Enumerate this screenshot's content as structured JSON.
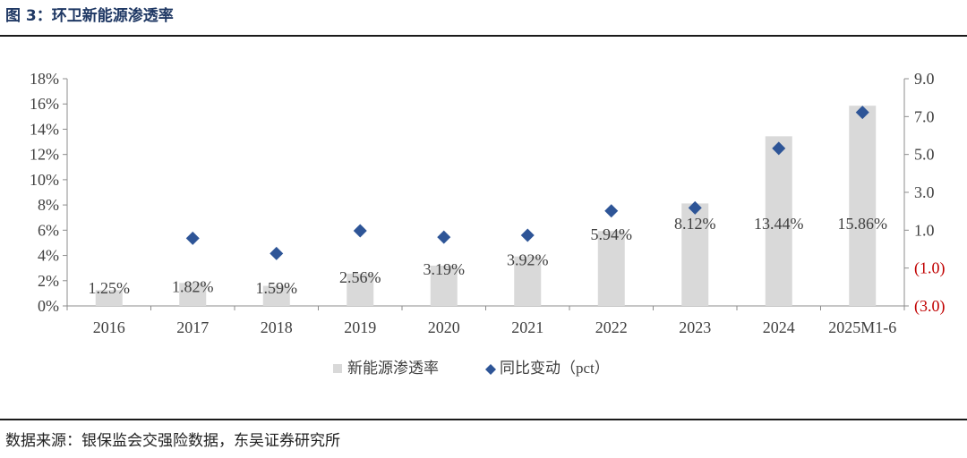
{
  "figure": {
    "title": "图 3：环卫新能源渗透率",
    "source": "数据来源：银保监会交强险数据，东吴证券研究所"
  },
  "chart_data": {
    "type": "bar",
    "categories": [
      "2016",
      "2017",
      "2018",
      "2019",
      "2020",
      "2021",
      "2022",
      "2023",
      "2024",
      "2025M1-6"
    ],
    "series": [
      {
        "name": "新能源渗透率",
        "kind": "bar",
        "axis": "left",
        "color": "#d9d9d9",
        "values": [
          1.25,
          1.82,
          1.59,
          2.56,
          3.19,
          3.92,
          5.94,
          8.12,
          13.44,
          15.86
        ],
        "labels": [
          "1.25%",
          "1.82%",
          "1.59%",
          "2.56%",
          "3.19%",
          "3.92%",
          "5.94%",
          "8.12%",
          "13.44%",
          "15.86%"
        ]
      },
      {
        "name": "同比变动（pct）",
        "kind": "scatter",
        "marker": "diamond",
        "axis": "right",
        "color": "#2e5597",
        "values": [
          null,
          0.57,
          -0.23,
          0.97,
          0.63,
          0.73,
          2.02,
          2.18,
          5.32,
          7.22
        ]
      }
    ],
    "left_axis": {
      "ylim": [
        0,
        18
      ],
      "ticks": [
        0,
        2,
        4,
        6,
        8,
        10,
        12,
        14,
        16,
        18
      ],
      "tick_labels": [
        "0%",
        "2%",
        "4%",
        "6%",
        "8%",
        "10%",
        "12%",
        "14%",
        "16%",
        "18%"
      ]
    },
    "right_axis": {
      "ylim": [
        -3,
        9
      ],
      "ticks": [
        -3,
        -1,
        1,
        3,
        5,
        7,
        9
      ],
      "tick_labels": [
        "(3.0)",
        "(1.0)",
        "1.0",
        "3.0",
        "5.0",
        "7.0",
        "9.0"
      ],
      "negative_label_color": "#c00000"
    },
    "grid": false,
    "legend_position": "bottom",
    "legend": [
      {
        "label": "新能源渗透率",
        "marker": "square",
        "color": "#d9d9d9"
      },
      {
        "label": "同比变动（pct）",
        "marker": "diamond",
        "color": "#2e5597"
      }
    ]
  }
}
